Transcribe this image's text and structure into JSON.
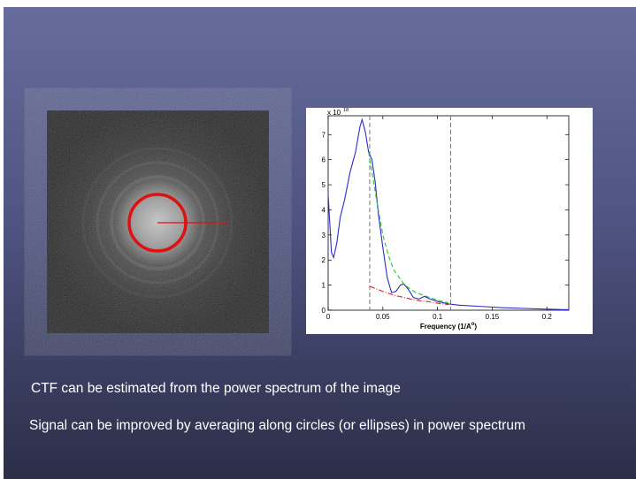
{
  "slide": {
    "lines": [
      "CTF can be estimated from the power spectrum of the image",
      "Signal can be improved by averaging along circles (or ellipses) in power spectrum"
    ]
  },
  "chart_data": {
    "type": "line",
    "y_multiplier": {
      "base": "x 10",
      "power": "18"
    },
    "xlabel": {
      "text": "Frequency (1/A",
      "sup": "o",
      "end": ")"
    },
    "xlim": [
      0,
      0.22
    ],
    "xticks": [
      0,
      0.05,
      0.1,
      0.15,
      0.2
    ],
    "ylim": [
      0,
      7.75
    ],
    "yticks": [
      0,
      1,
      2,
      3,
      4,
      5,
      6,
      7
    ],
    "vlines": [
      0.038,
      0.112
    ],
    "vline_color": "#777777",
    "series": [
      {
        "color": "#2a2ad0",
        "dash": "none",
        "x": [
          0,
          0.003,
          0.005,
          0.008,
          0.011,
          0.015,
          0.02,
          0.025,
          0.029,
          0.031,
          0.034,
          0.037,
          0.04,
          0.043,
          0.046,
          0.05,
          0.054,
          0.058,
          0.062,
          0.066,
          0.069,
          0.073,
          0.078,
          0.083,
          0.088,
          0.093,
          0.1,
          0.11,
          0.12,
          0.14,
          0.16,
          0.18,
          0.2,
          0.22
        ],
        "values": [
          4.6,
          2.3,
          2.1,
          2.7,
          3.7,
          4.4,
          5.5,
          6.3,
          7.3,
          7.6,
          7.1,
          6.3,
          6.0,
          5.1,
          3.8,
          2.5,
          1.3,
          0.7,
          0.75,
          1.0,
          1.05,
          0.85,
          0.5,
          0.45,
          0.55,
          0.45,
          0.35,
          0.25,
          0.2,
          0.15,
          0.1,
          0.07,
          0.04,
          0.02
        ]
      },
      {
        "color": "#22cc22",
        "dash": "5 3",
        "x": [
          0.037,
          0.045,
          0.05,
          0.055,
          0.06,
          0.07,
          0.08,
          0.09,
          0.1,
          0.11
        ],
        "values": [
          6.3,
          4.2,
          3.0,
          2.2,
          1.6,
          1.0,
          0.7,
          0.55,
          0.4,
          0.3
        ]
      },
      {
        "color": "#dd2222",
        "dash": "6 2 1 2",
        "x": [
          0.038,
          0.05,
          0.06,
          0.07,
          0.08,
          0.09,
          0.1,
          0.11
        ],
        "values": [
          0.95,
          0.75,
          0.6,
          0.5,
          0.4,
          0.35,
          0.28,
          0.22
        ]
      }
    ]
  }
}
